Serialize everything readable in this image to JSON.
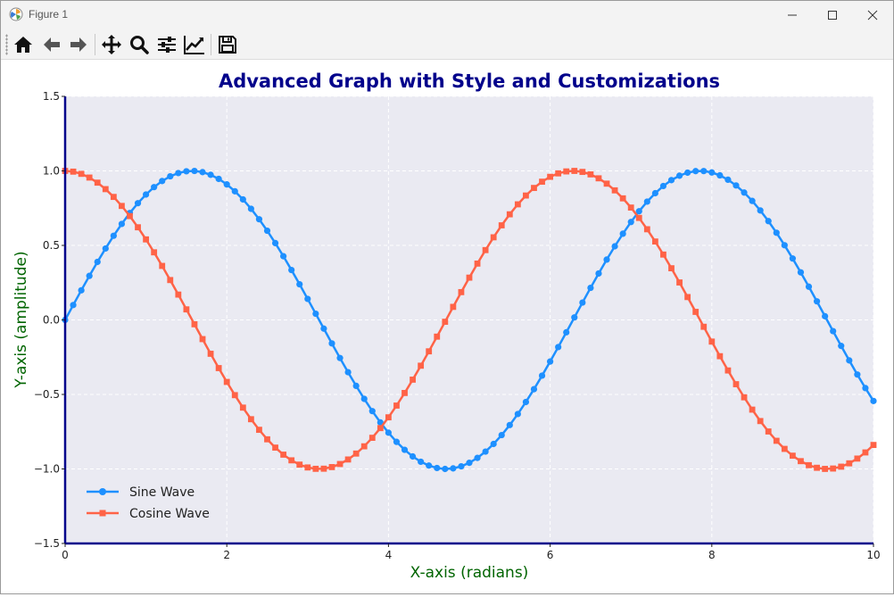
{
  "window": {
    "title": "Figure 1"
  },
  "toolbar": {
    "buttons": [
      {
        "name": "home-icon"
      },
      {
        "name": "back-arrow-icon"
      },
      {
        "name": "forward-arrow-icon"
      },
      {
        "name": "pan-move-icon"
      },
      {
        "name": "zoom-magnifier-icon"
      },
      {
        "name": "configure-subplots-icon"
      },
      {
        "name": "edit-axis-icon"
      },
      {
        "name": "save-floppy-icon"
      }
    ]
  },
  "colors": {
    "title": "#00008b",
    "axis_label": "#006400",
    "plot_bg": "#eaeaf2",
    "spine": "#00008b",
    "sine": "#1e90ff",
    "cosine": "#ff6347"
  },
  "chart_data": {
    "type": "line",
    "title": "Advanced Graph with Style and Customizations",
    "xlabel": "X-axis (radians)",
    "ylabel": "Y-axis (amplitude)",
    "xlim": [
      0,
      10
    ],
    "ylim": [
      -1.5,
      1.5
    ],
    "xticks": [
      "0",
      "2",
      "4",
      "6",
      "8",
      "10"
    ],
    "xtick_values": [
      0,
      2,
      4,
      6,
      8,
      10
    ],
    "yticks": [
      "−1.5",
      "−1.0",
      "−0.5",
      "0.0",
      "0.5",
      "1.0",
      "1.5"
    ],
    "ytick_values": [
      -1.5,
      -1.0,
      -0.5,
      0.0,
      0.5,
      1.0,
      1.5
    ],
    "grid": true,
    "legend_position": "lower-left",
    "series": [
      {
        "name": "Sine Wave",
        "color": "#1e90ff",
        "marker": "circle",
        "x": [
          0,
          0.1,
          0.2,
          0.3,
          0.4,
          0.5,
          0.6,
          0.7,
          0.8,
          0.9,
          1,
          1.1,
          1.2,
          1.3,
          1.4,
          1.5,
          1.6,
          1.7,
          1.8,
          1.9,
          2,
          2.1,
          2.2,
          2.3,
          2.4,
          2.5,
          2.6,
          2.7,
          2.8,
          2.9,
          3,
          3.1,
          3.2,
          3.3,
          3.4,
          3.5,
          3.6,
          3.7,
          3.8,
          3.9,
          4,
          4.1,
          4.2,
          4.3,
          4.4,
          4.5,
          4.6,
          4.7,
          4.8,
          4.9,
          5,
          5.1,
          5.2,
          5.3,
          5.4,
          5.5,
          5.6,
          5.7,
          5.8,
          5.9,
          6,
          6.1,
          6.2,
          6.3,
          6.4,
          6.5,
          6.6,
          6.7,
          6.8,
          6.9,
          7,
          7.1,
          7.2,
          7.3,
          7.4,
          7.5,
          7.6,
          7.7,
          7.8,
          7.9,
          8,
          8.1,
          8.2,
          8.3,
          8.4,
          8.5,
          8.6,
          8.7,
          8.8,
          8.9,
          9,
          9.1,
          9.2,
          9.3,
          9.4,
          9.5,
          9.6,
          9.7,
          9.8,
          9.9,
          10
        ],
        "y": [
          0,
          0.0998,
          0.1987,
          0.2955,
          0.3894,
          0.4794,
          0.5646,
          0.6442,
          0.7174,
          0.7833,
          0.8415,
          0.8912,
          0.932,
          0.9636,
          0.9854,
          0.9975,
          0.9996,
          0.9917,
          0.9738,
          0.9463,
          0.9093,
          0.8632,
          0.8085,
          0.7457,
          0.6755,
          0.5985,
          0.5155,
          0.4274,
          0.335,
          0.2392,
          0.1411,
          0.0416,
          -0.0584,
          -0.1577,
          -0.2555,
          -0.3508,
          -0.4425,
          -0.5298,
          -0.6119,
          -0.6878,
          -0.7568,
          -0.8183,
          -0.8716,
          -0.9162,
          -0.9516,
          -0.9775,
          -0.9937,
          -0.9999,
          -0.9962,
          -0.9825,
          -0.9589,
          -0.9258,
          -0.8835,
          -0.8323,
          -0.7728,
          -0.7055,
          -0.6313,
          -0.5507,
          -0.4646,
          -0.3739,
          -0.2794,
          -0.1822,
          -0.0831,
          0.0168,
          0.1165,
          0.2151,
          0.3115,
          0.4048,
          0.4941,
          0.5784,
          0.657,
          0.729,
          0.7937,
          0.8504,
          0.8987,
          0.938,
          0.9679,
          0.9882,
          0.9985,
          0.9989,
          0.9894,
          0.9699,
          0.9407,
          0.9022,
          0.8546,
          0.7985,
          0.7344,
          0.663,
          0.5849,
          0.501,
          0.4121,
          0.319,
          0.2229,
          0.1245,
          0.0248,
          -0.0752,
          -0.1743,
          -0.2718,
          -0.3665,
          -0.4575,
          -0.544
        ]
      },
      {
        "name": "Cosine Wave",
        "color": "#ff6347",
        "marker": "square",
        "x": [
          0,
          0.1,
          0.2,
          0.3,
          0.4,
          0.5,
          0.6,
          0.7,
          0.8,
          0.9,
          1,
          1.1,
          1.2,
          1.3,
          1.4,
          1.5,
          1.6,
          1.7,
          1.8,
          1.9,
          2,
          2.1,
          2.2,
          2.3,
          2.4,
          2.5,
          2.6,
          2.7,
          2.8,
          2.9,
          3,
          3.1,
          3.2,
          3.3,
          3.4,
          3.5,
          3.6,
          3.7,
          3.8,
          3.9,
          4,
          4.1,
          4.2,
          4.3,
          4.4,
          4.5,
          4.6,
          4.7,
          4.8,
          4.9,
          5,
          5.1,
          5.2,
          5.3,
          5.4,
          5.5,
          5.6,
          5.7,
          5.8,
          5.9,
          6,
          6.1,
          6.2,
          6.3,
          6.4,
          6.5,
          6.6,
          6.7,
          6.8,
          6.9,
          7,
          7.1,
          7.2,
          7.3,
          7.4,
          7.5,
          7.6,
          7.7,
          7.8,
          7.9,
          8,
          8.1,
          8.2,
          8.3,
          8.4,
          8.5,
          8.6,
          8.7,
          8.8,
          8.9,
          9,
          9.1,
          9.2,
          9.3,
          9.4,
          9.5,
          9.6,
          9.7,
          9.8,
          9.9,
          10
        ],
        "y": [
          1,
          0.995,
          0.9801,
          0.9553,
          0.9211,
          0.8776,
          0.8253,
          0.7648,
          0.6967,
          0.6216,
          0.5403,
          0.4536,
          0.3624,
          0.2675,
          0.17,
          0.0707,
          -0.0292,
          -0.1288,
          -0.2272,
          -0.3233,
          -0.4161,
          -0.5048,
          -0.5885,
          -0.6663,
          -0.7374,
          -0.8011,
          -0.8569,
          -0.9041,
          -0.9422,
          -0.971,
          -0.99,
          -0.9991,
          -0.9983,
          -0.9875,
          -0.9668,
          -0.9365,
          -0.8968,
          -0.8481,
          -0.791,
          -0.7259,
          -0.6536,
          -0.5748,
          -0.4903,
          -0.4008,
          -0.3073,
          -0.2108,
          -0.1122,
          -0.0124,
          0.0875,
          0.1865,
          0.2837,
          0.378,
          0.4685,
          0.5544,
          0.6347,
          0.7087,
          0.7756,
          0.8347,
          0.8855,
          0.9275,
          0.9602,
          0.9833,
          0.9965,
          0.9999,
          0.9932,
          0.9766,
          0.9502,
          0.9144,
          0.8694,
          0.8157,
          0.7539,
          0.6845,
          0.6084,
          0.5261,
          0.4385,
          0.3466,
          0.2513,
          0.1534,
          0.054,
          -0.046,
          -0.1455,
          -0.2435,
          -0.3392,
          -0.4314,
          -0.5193,
          -0.602,
          -0.6787,
          -0.7486,
          -0.8111,
          -0.8654,
          -0.9111,
          -0.9477,
          -0.9748,
          -0.9922,
          -0.9997,
          -0.9972,
          -0.9847,
          -0.9624,
          -0.9304,
          -0.8892,
          -0.8391
        ]
      }
    ]
  }
}
